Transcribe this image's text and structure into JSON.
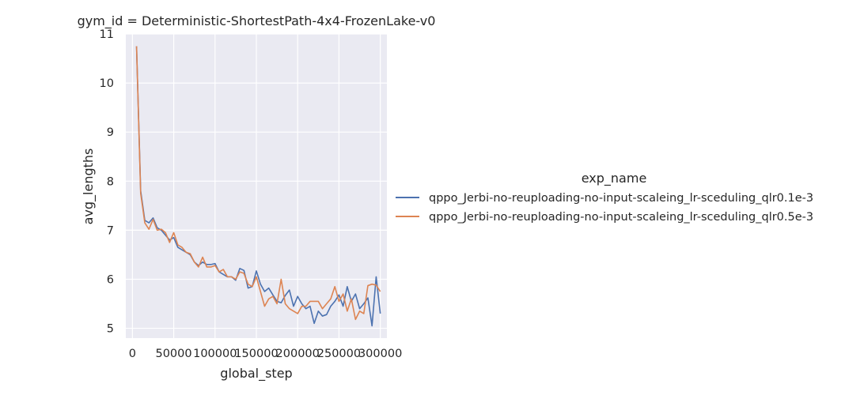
{
  "chart_data": {
    "type": "line",
    "title": "gym_id = Deterministic-ShortestPath-4x4-FrozenLake-v0",
    "xlabel": "global_step",
    "ylabel": "avg_lengths",
    "xlim": [
      -8000,
      308000
    ],
    "ylim": [
      4.8,
      11.0
    ],
    "xticks": [
      0,
      50000,
      100000,
      150000,
      200000,
      250000,
      300000
    ],
    "xtick_labels": [
      "0",
      "50000",
      "100000",
      "150000",
      "200000",
      "250000",
      "300000"
    ],
    "yticks": [
      5,
      6,
      7,
      8,
      9,
      10,
      11
    ],
    "ytick_labels": [
      "5",
      "6",
      "7",
      "8",
      "9",
      "10",
      "11"
    ],
    "grid": true,
    "legend": {
      "title": "exp_name",
      "placement": "right"
    },
    "x": [
      5000,
      10000,
      15000,
      20000,
      25000,
      30000,
      35000,
      40000,
      45000,
      50000,
      55000,
      60000,
      65000,
      70000,
      75000,
      80000,
      85000,
      90000,
      95000,
      100000,
      105000,
      110000,
      115000,
      120000,
      125000,
      130000,
      135000,
      140000,
      145000,
      150000,
      155000,
      160000,
      165000,
      170000,
      175000,
      180000,
      185000,
      190000,
      195000,
      200000,
      205000,
      210000,
      215000,
      220000,
      225000,
      230000,
      235000,
      240000,
      245000,
      250000,
      255000,
      260000,
      265000,
      270000,
      275000,
      280000,
      285000,
      290000,
      295000,
      300000
    ],
    "series": [
      {
        "name": "qppo_Jerbi-no-reuploading-no-input-scaleing_lr-sceduling_qlr0.1e-3",
        "color": "#4c72b0",
        "values": [
          10.75,
          7.8,
          7.2,
          7.15,
          7.25,
          7.05,
          7.0,
          6.9,
          6.8,
          6.85,
          6.65,
          6.6,
          6.55,
          6.5,
          6.35,
          6.28,
          6.35,
          6.3,
          6.3,
          6.32,
          6.15,
          6.1,
          6.05,
          6.05,
          5.98,
          6.22,
          6.18,
          5.82,
          5.85,
          6.17,
          5.9,
          5.75,
          5.82,
          5.68,
          5.55,
          5.52,
          5.67,
          5.78,
          5.45,
          5.65,
          5.5,
          5.4,
          5.45,
          5.1,
          5.35,
          5.25,
          5.28,
          5.45,
          5.55,
          5.68,
          5.45,
          5.85,
          5.55,
          5.7,
          5.4,
          5.5,
          5.62,
          5.05,
          6.05,
          5.3
        ]
      },
      {
        "name": "qppo_Jerbi-no-reuploading-no-input-scaleing_lr-sceduling_qlr0.5e-3",
        "color": "#dd8452",
        "values": [
          10.75,
          7.75,
          7.15,
          7.02,
          7.22,
          7.0,
          7.02,
          6.95,
          6.75,
          6.95,
          6.7,
          6.65,
          6.55,
          6.52,
          6.35,
          6.25,
          6.45,
          6.25,
          6.25,
          6.28,
          6.15,
          6.2,
          6.05,
          6.05,
          6.0,
          6.15,
          6.12,
          5.9,
          5.85,
          6.05,
          5.75,
          5.45,
          5.6,
          5.65,
          5.5,
          6.0,
          5.5,
          5.4,
          5.35,
          5.3,
          5.45,
          5.45,
          5.55,
          5.55,
          5.55,
          5.4,
          5.5,
          5.6,
          5.85,
          5.55,
          5.7,
          5.35,
          5.6,
          5.18,
          5.35,
          5.3,
          5.87,
          5.9,
          5.88,
          5.75
        ]
      }
    ]
  }
}
